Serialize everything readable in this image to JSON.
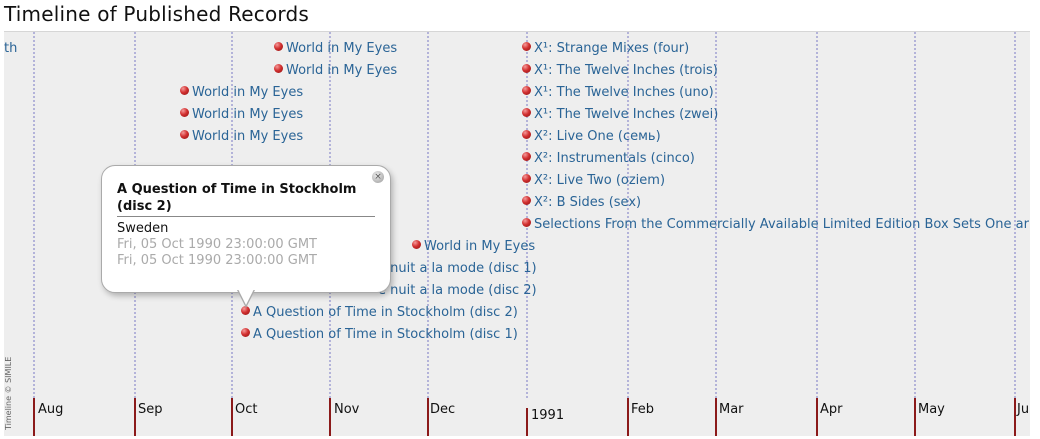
{
  "page": {
    "title": "Timeline of Published Records"
  },
  "timeline": {
    "credit": "Timeline © SIMILE",
    "events": [
      {
        "label": "th",
        "dot": false
      },
      {
        "label": "World in My Eyes",
        "dot": true
      },
      {
        "label": "World in My Eyes",
        "dot": true
      },
      {
        "label": "World in My Eyes",
        "dot": true
      },
      {
        "label": "World in My Eyes",
        "dot": true
      },
      {
        "label": "World in My Eyes",
        "dot": true
      },
      {
        "label": "X¹: Strange Mixes (four)",
        "dot": true
      },
      {
        "label": "X¹: The Twelve Inches (trois)",
        "dot": true
      },
      {
        "label": "X¹: The Twelve Inches (uno)",
        "dot": true
      },
      {
        "label": "X¹: The Twelve Inches (zwei)",
        "dot": true
      },
      {
        "label": "X²: Live One (семь)",
        "dot": true
      },
      {
        "label": "X²: Instrumentals (cinco)",
        "dot": true
      },
      {
        "label": "X²: Live Two (oziem)",
        "dot": true
      },
      {
        "label": "X²: B Sides (sex)",
        "dot": true
      },
      {
        "label": "Selections From the Commercially Available Limited Edition Box Sets One ar",
        "dot": true
      },
      {
        "label": "World in My Eyes",
        "dot": true
      },
      {
        "label": "e nuit a la mode (disc 1)",
        "dot": false
      },
      {
        "label": "e nuit a la mode (disc 2)",
        "dot": false
      },
      {
        "label": "A Question of Time in Stockholm (disc 2)",
        "dot": true
      },
      {
        "label": "A Question of Time in Stockholm (disc 1)",
        "dot": true
      }
    ],
    "months": [
      "Aug",
      "Sep",
      "Oct",
      "Nov",
      "Dec",
      "1991",
      "Feb",
      "Mar",
      "Apr",
      "May",
      "Ju"
    ]
  },
  "popup": {
    "title": "A Question of Time in Stockholm (disc 2)",
    "country": "Sweden",
    "start": "Fri, 05 Oct 1990 23:00:00 GMT",
    "end": "Fri, 05 Oct 1990 23:00:00 GMT",
    "close_icon": "close-icon"
  }
}
